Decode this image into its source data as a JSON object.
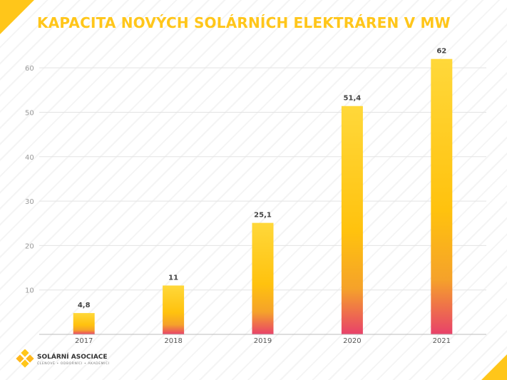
{
  "title": "KAPACITA NOVÝCH SOLÁRNÍCH ELEKTRÁREN V MW",
  "logo": {
    "name": "SOLÁRNÍ ASOCIACE",
    "tagline": "ČLENOVÉ • ODBORNÍCI • AKADEMICI"
  },
  "colors": {
    "accent": "#ffc61a",
    "bar_top": "#ffd83a",
    "bar_mid": "#ffb81c",
    "bar_bottom": "#e8416a"
  },
  "chart_data": {
    "type": "bar",
    "title": "KAPACITA NOVÝCH SOLÁRNÍCH ELEKTRÁREN V MW",
    "xlabel": "",
    "ylabel": "",
    "categories": [
      "2017",
      "2018",
      "2019",
      "2020",
      "2021"
    ],
    "values": [
      4.8,
      11,
      25.1,
      51.4,
      62
    ],
    "data_labels": [
      "4,8",
      "11",
      "25,1",
      "51,4",
      "62"
    ],
    "yticks": [
      10,
      20,
      30,
      40,
      50,
      60
    ],
    "ylim": [
      0,
      65
    ],
    "grid": true,
    "legend": "none"
  }
}
